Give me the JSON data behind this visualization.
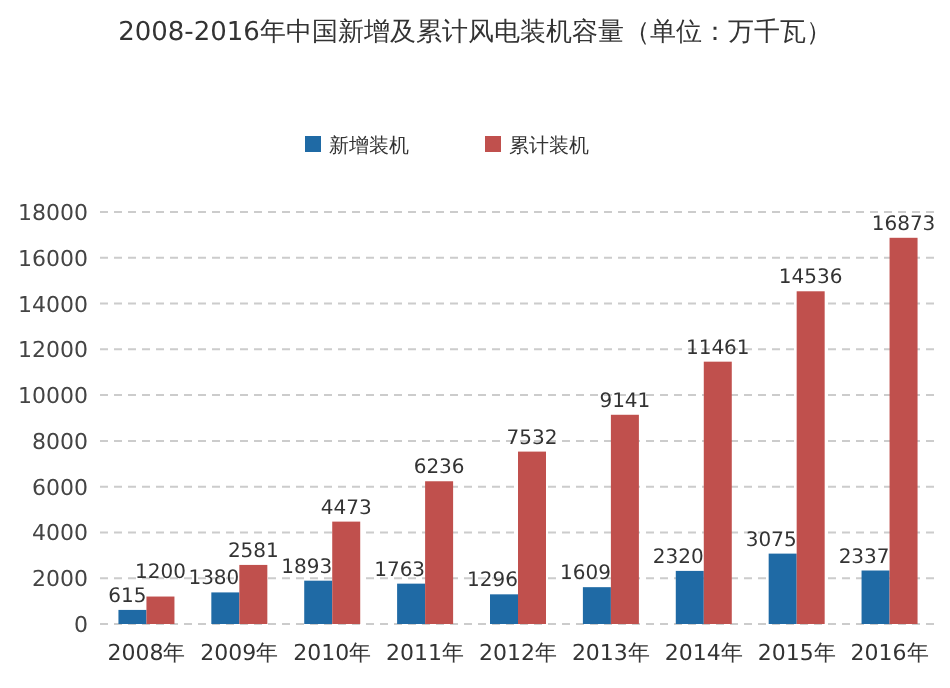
{
  "chart_data": {
    "type": "bar",
    "title": "2008-2016年中国新增及累计风电装机容量（单位：万千瓦）",
    "categories": [
      "2008年",
      "2009年",
      "2010年",
      "2011年",
      "2012年",
      "2013年",
      "2014年",
      "2015年",
      "2016年"
    ],
    "series": [
      {
        "name": "新增装机",
        "color": "#1f6aa5",
        "values": [
          615,
          1380,
          1893,
          1763,
          1296,
          1609,
          2320,
          3075,
          2337
        ]
      },
      {
        "name": "累计装机",
        "color": "#c0504d",
        "values": [
          1200,
          2581,
          4473,
          6236,
          7532,
          9141,
          11461,
          14536,
          16873
        ]
      }
    ],
    "ylim": [
      0,
      18000
    ],
    "yticks": [
      0,
      2000,
      4000,
      6000,
      8000,
      10000,
      12000,
      14000,
      16000,
      18000
    ],
    "grid": "y",
    "legend": "top",
    "data_labels": true
  }
}
